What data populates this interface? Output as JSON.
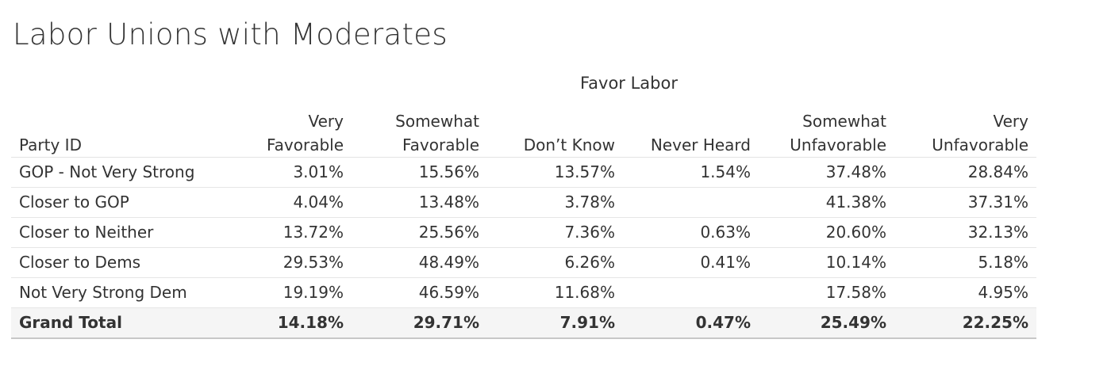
{
  "chart_data": {
    "type": "table",
    "title": "Labor Unions with Moderates",
    "column_group_header": "Favor Labor",
    "row_header": "Party ID",
    "columns": [
      [
        "Very",
        "Favorable"
      ],
      [
        "Somewhat",
        "Favorable"
      ],
      [
        "Don’t Know"
      ],
      [
        "Never Heard"
      ],
      [
        "Somewhat",
        "Unfavorable"
      ],
      [
        "Very",
        "Unfavorable"
      ]
    ],
    "rows": [
      {
        "label": "GOP - Not Very Strong",
        "values": [
          "3.01%",
          "15.56%",
          "13.57%",
          "1.54%",
          "37.48%",
          "28.84%"
        ]
      },
      {
        "label": "Closer to GOP",
        "values": [
          "4.04%",
          "13.48%",
          "3.78%",
          "",
          "41.38%",
          "37.31%"
        ]
      },
      {
        "label": "Closer to Neither",
        "values": [
          "13.72%",
          "25.56%",
          "7.36%",
          "0.63%",
          "20.60%",
          "32.13%"
        ]
      },
      {
        "label": "Closer to Dems",
        "values": [
          "29.53%",
          "48.49%",
          "6.26%",
          "0.41%",
          "10.14%",
          "5.18%"
        ]
      },
      {
        "label": "Not Very Strong Dem",
        "values": [
          "19.19%",
          "46.59%",
          "11.68%",
          "",
          "17.58%",
          "4.95%"
        ]
      }
    ],
    "total": {
      "label": "Grand Total",
      "values": [
        "14.18%",
        "29.71%",
        "7.91%",
        "0.47%",
        "25.49%",
        "22.25%"
      ]
    }
  }
}
